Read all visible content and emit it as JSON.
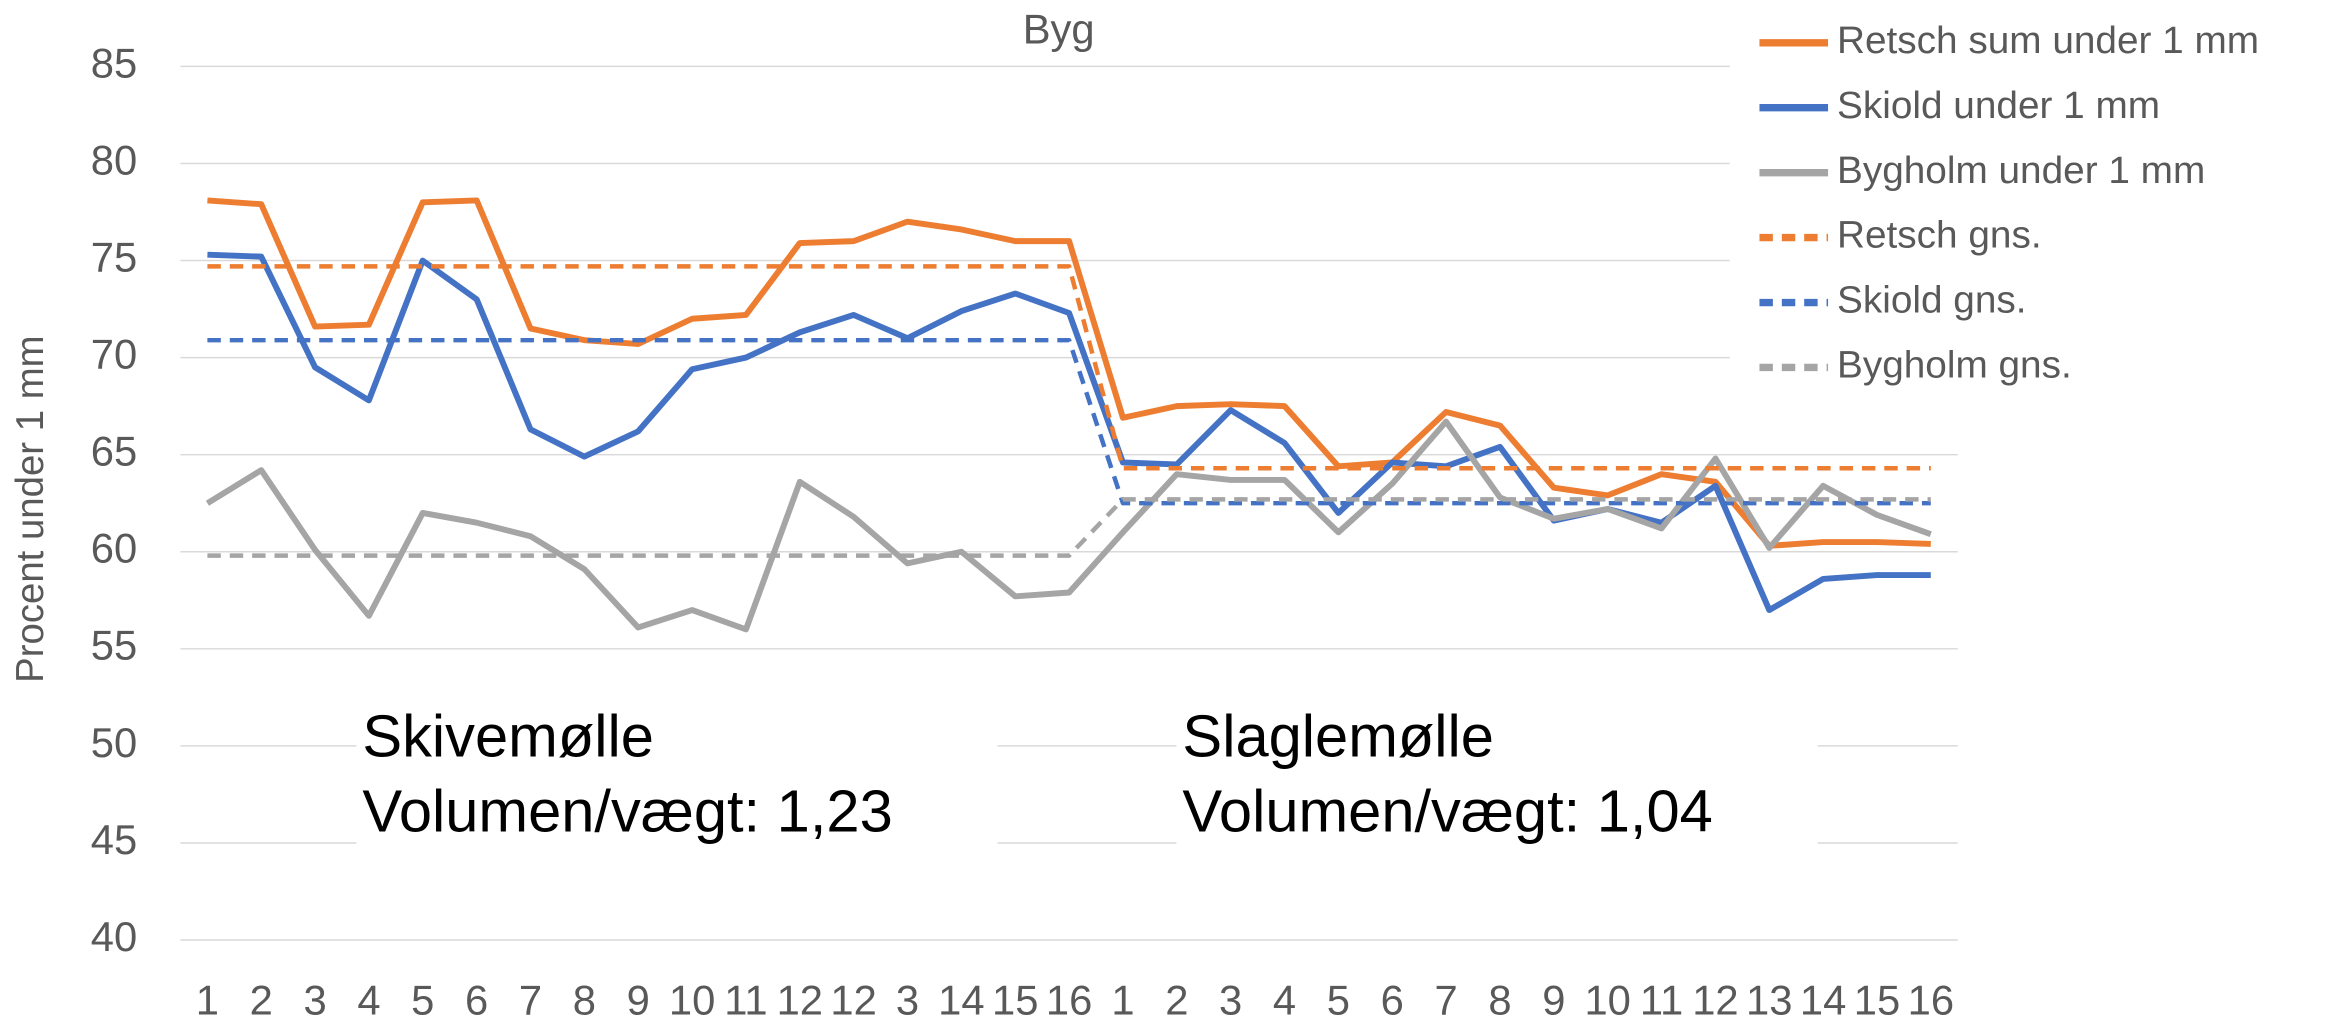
{
  "chart_data": {
    "type": "line",
    "title": "Byg",
    "y_label": "Procent under 1 mm",
    "categories": [
      "1",
      "2",
      "3",
      "4",
      "5",
      "6",
      "7",
      "8",
      "9",
      "10",
      "11",
      "12",
      "12",
      "3",
      "14",
      "15",
      "16",
      "1",
      "2",
      "3",
      "4",
      "5",
      "6",
      "7",
      "8",
      "9",
      "10",
      "11",
      "12",
      "13",
      "14",
      "15",
      "16"
    ],
    "ylim": [
      40,
      85
    ],
    "yticks": [
      40,
      45,
      50,
      55,
      60,
      65,
      70,
      75,
      80,
      85
    ],
    "grid": true,
    "legend": "right",
    "annotations": [
      [
        "Skivemølle",
        "Volumen/vægt: 1,23"
      ],
      [
        "Slaglemølle",
        "Volumen/vægt: 1,04"
      ]
    ],
    "series": [
      {
        "name": "Retsch sum under 1 mm",
        "color": "#ed7d31",
        "dash": false,
        "values": [
          78.1,
          77.9,
          71.6,
          71.7,
          78,
          78.1,
          71.5,
          70.9,
          70.7,
          72,
          72.2,
          75.9,
          76,
          77,
          76.6,
          76,
          76,
          66.9,
          67.5,
          67.6,
          67.5,
          64.4,
          64.6,
          67.2,
          66.5,
          63.3,
          62.9,
          64,
          63.6,
          60.3,
          60.5,
          60.5,
          60.4
        ]
      },
      {
        "name": "Skiold under 1 mm",
        "color": "#4472c4",
        "dash": false,
        "values": [
          75.3,
          75.2,
          69.5,
          67.8,
          75,
          73,
          66.3,
          64.9,
          66.2,
          69.4,
          70,
          71.3,
          72.2,
          71,
          72.4,
          73.3,
          72.3,
          64.6,
          64.5,
          67.3,
          65.6,
          62,
          64.6,
          64.4,
          65.4,
          61.6,
          62.2,
          61.5,
          63.4,
          57,
          58.6,
          58.8,
          58.8
        ]
      },
      {
        "name": "Bygholm under 1 mm",
        "color": "#a5a5a5",
        "dash": false,
        "values": [
          62.5,
          64.2,
          60.1,
          56.7,
          62,
          61.5,
          60.8,
          59.1,
          56.1,
          57,
          56,
          63.6,
          61.8,
          59.4,
          60,
          57.7,
          57.9,
          61,
          64,
          63.7,
          63.7,
          61,
          63.5,
          66.7,
          62.8,
          61.7,
          62.2,
          61.2,
          64.8,
          60.2,
          63.4,
          61.9,
          60.9
        ]
      },
      {
        "name": "Retsch gns.",
        "color": "#ed7d31",
        "dash": true,
        "values": [
          74.7,
          74.7,
          74.7,
          74.7,
          74.7,
          74.7,
          74.7,
          74.7,
          74.7,
          74.7,
          74.7,
          74.7,
          74.7,
          74.7,
          74.7,
          74.7,
          74.7,
          64.3,
          64.3,
          64.3,
          64.3,
          64.3,
          64.3,
          64.3,
          64.3,
          64.3,
          64.3,
          64.3,
          64.3,
          64.3,
          64.3,
          64.3,
          64.3
        ]
      },
      {
        "name": "Skiold gns.",
        "color": "#4472c4",
        "dash": true,
        "values": [
          70.9,
          70.9,
          70.9,
          70.9,
          70.9,
          70.9,
          70.9,
          70.9,
          70.9,
          70.9,
          70.9,
          70.9,
          70.9,
          70.9,
          70.9,
          70.9,
          70.9,
          62.5,
          62.5,
          62.5,
          62.5,
          62.5,
          62.5,
          62.5,
          62.5,
          62.5,
          62.5,
          62.5,
          62.5,
          62.5,
          62.5,
          62.5,
          62.5
        ]
      },
      {
        "name": "Bygholm gns.",
        "color": "#a5a5a5",
        "dash": true,
        "values": [
          59.8,
          59.8,
          59.8,
          59.8,
          59.8,
          59.8,
          59.8,
          59.8,
          59.8,
          59.8,
          59.8,
          59.8,
          59.8,
          59.8,
          59.8,
          59.8,
          59.8,
          62.7,
          62.7,
          62.7,
          62.7,
          62.7,
          62.7,
          62.7,
          62.7,
          62.7,
          62.7,
          62.7,
          62.7,
          62.7,
          62.7,
          62.7,
          62.7
        ]
      }
    ]
  }
}
